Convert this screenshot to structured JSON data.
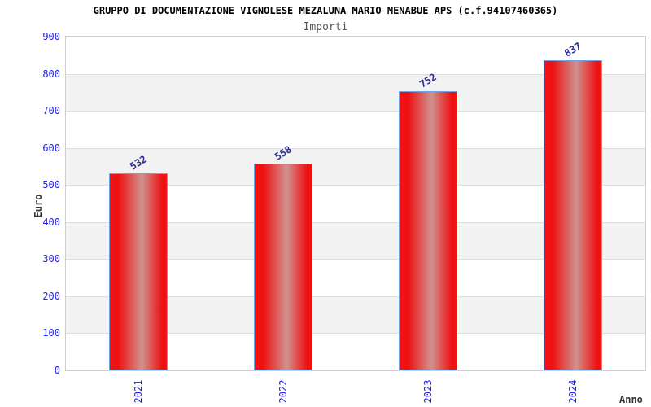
{
  "chart_data": {
    "type": "bar",
    "title": "GRUPPO DI DOCUMENTAZIONE VIGNOLESE MEZALUNA MARIO MENABUE APS (c.f.94107460365)",
    "subtitle": "Importi",
    "xlabel": "Anno",
    "ylabel": "Euro",
    "categories": [
      "2021",
      "2022",
      "2023",
      "2024"
    ],
    "values": [
      532,
      558,
      752,
      837
    ],
    "ylim": [
      0,
      900
    ],
    "ytick_step": 100,
    "grid": "horizontal gridlines with alternating gray bands every 100 units",
    "legend": "none",
    "colors": {
      "bar_edge_red": "#ee1111",
      "bar_center_highlight": "#d0928f",
      "bar_border": "#72a3e2",
      "tick_label_blue": "#2222ee",
      "value_label_navy": "#2a2a90",
      "axis_title": "#333333",
      "subtitle_gray": "#555555",
      "title_black": "#000000",
      "band_gray": "#f2f2f2",
      "grid_line": "#dedede",
      "plot_border": "#cfcfcf",
      "background": "#ffffff"
    }
  }
}
